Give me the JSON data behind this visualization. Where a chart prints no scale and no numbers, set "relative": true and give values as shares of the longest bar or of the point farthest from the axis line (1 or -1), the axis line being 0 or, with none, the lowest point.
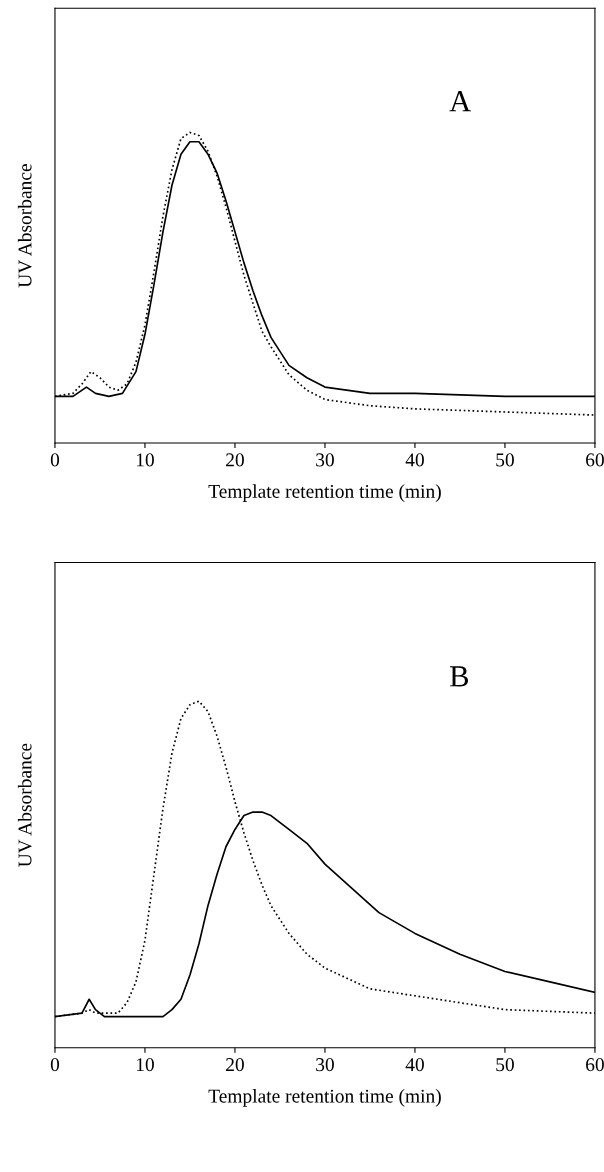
{
  "chart_data": [
    {
      "type": "line",
      "relative": true,
      "xlabel": "Template retention time (min)",
      "ylabel": "UV Absorbance",
      "xlim": [
        0,
        60
      ],
      "xticks": [
        0,
        10,
        20,
        30,
        40,
        50,
        60
      ],
      "tick_labels": "x",
      "annotations": [
        "A"
      ],
      "series": [
        {
          "color": "#000000",
          "line_style": "solid",
          "x": [
            0,
            2,
            3.5,
            4.5,
            6,
            7.5,
            9,
            10,
            11,
            12,
            13,
            14,
            15,
            16,
            17,
            18,
            19,
            20,
            21,
            22,
            23,
            24,
            26,
            28,
            30,
            35,
            40,
            50,
            60
          ],
          "values": [
            0.15,
            0.15,
            0.18,
            0.16,
            0.15,
            0.16,
            0.23,
            0.35,
            0.51,
            0.68,
            0.83,
            0.93,
            0.97,
            0.97,
            0.93,
            0.87,
            0.78,
            0.68,
            0.58,
            0.49,
            0.41,
            0.34,
            0.25,
            0.21,
            0.18,
            0.16,
            0.16,
            0.15,
            0.15
          ]
        },
        {
          "color": "#000000",
          "line_style": "dotted",
          "x": [
            0,
            2,
            3,
            4,
            5,
            6,
            7,
            8,
            9,
            10,
            11,
            12,
            13,
            14,
            15,
            16,
            17,
            18,
            19,
            20,
            21,
            22,
            23,
            24,
            26,
            28,
            30,
            35,
            40,
            50,
            60
          ],
          "values": [
            0.15,
            0.16,
            0.19,
            0.23,
            0.21,
            0.18,
            0.17,
            0.19,
            0.26,
            0.38,
            0.55,
            0.73,
            0.88,
            0.98,
            1.0,
            0.99,
            0.94,
            0.86,
            0.76,
            0.65,
            0.54,
            0.45,
            0.36,
            0.31,
            0.22,
            0.17,
            0.14,
            0.12,
            0.11,
            0.1,
            0.09
          ]
        }
      ]
    },
    {
      "type": "line",
      "relative": true,
      "xlabel": "Template retention time (min)",
      "ylabel": "UV Absorbance",
      "xlim": [
        0,
        60
      ],
      "xticks": [
        0,
        10,
        20,
        30,
        40,
        50,
        60
      ],
      "tick_labels": "x",
      "annotations": [
        "B"
      ],
      "series": [
        {
          "color": "#000000",
          "line_style": "solid",
          "x": [
            0,
            3,
            3.8,
            4.5,
            5.5,
            10,
            12,
            13,
            14,
            15,
            16,
            17,
            18,
            19,
            20,
            21,
            22,
            23,
            24,
            26,
            28,
            30,
            33,
            36,
            40,
            45,
            50,
            55,
            60
          ],
          "values": [
            0.09,
            0.1,
            0.14,
            0.11,
            0.09,
            0.09,
            0.09,
            0.11,
            0.14,
            0.21,
            0.3,
            0.41,
            0.5,
            0.58,
            0.63,
            0.67,
            0.68,
            0.68,
            0.67,
            0.63,
            0.59,
            0.53,
            0.46,
            0.39,
            0.33,
            0.27,
            0.22,
            0.19,
            0.16
          ]
        },
        {
          "color": "#000000",
          "line_style": "dotted",
          "x": [
            0,
            3,
            3.8,
            4.5,
            5.5,
            7,
            8,
            9,
            10,
            11,
            12,
            13,
            14,
            15,
            16,
            17,
            18,
            19,
            20,
            21,
            22,
            23,
            24,
            26,
            28,
            30,
            35,
            40,
            50,
            60
          ],
          "values": [
            0.09,
            0.1,
            0.11,
            0.1,
            0.1,
            0.1,
            0.13,
            0.19,
            0.31,
            0.5,
            0.69,
            0.85,
            0.95,
            0.99,
            1.0,
            0.97,
            0.9,
            0.81,
            0.71,
            0.62,
            0.54,
            0.47,
            0.41,
            0.33,
            0.27,
            0.23,
            0.17,
            0.15,
            0.11,
            0.1
          ]
        }
      ]
    }
  ]
}
